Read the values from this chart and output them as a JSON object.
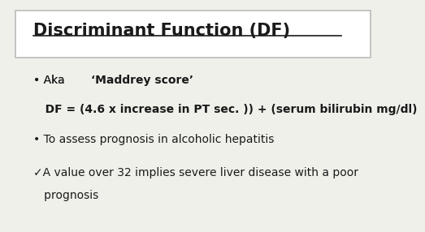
{
  "title": "Discriminant Function (DF)",
  "bg_color": "#f0f0eb",
  "title_box_color": "#ffffff",
  "title_box_edge": "#bbbbbb",
  "title_font_size": 15,
  "title_font_weight": "bold",
  "bullet1_prefix": "• Aka ",
  "bullet1_bold": "‘Maddrey score’",
  "formula": "   DF = (4.6 x increase in PT sec. )) + (serum bilirubin mg/dl)",
  "bullet2": "• To assess prognosis in alcoholic hepatitis",
  "bullet3_line1": "✓A value over 32 implies severe liver disease with a poor",
  "bullet3_line2": "   prognosis",
  "body_font_size": 10,
  "formula_font_size": 10,
  "body_color": "#1a1a1a",
  "formula_font_weight": "bold"
}
